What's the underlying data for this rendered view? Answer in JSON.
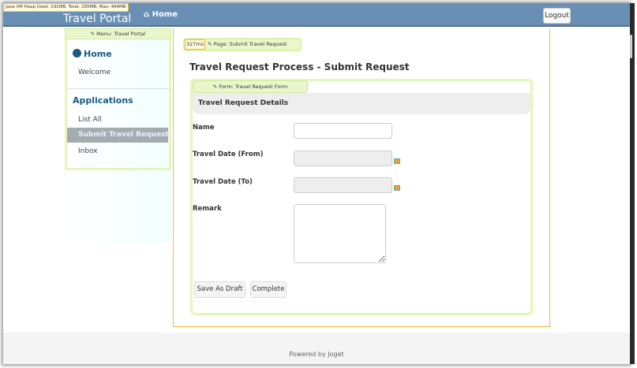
{
  "heap_info": "Java VM Heap Used: 191MB, Total: 295MB, Max: 494MB",
  "header": {
    "brand": "Travel Portal",
    "home": "Home",
    "logout": "Logout"
  },
  "menu": {
    "tag": "Menu: Travel Portal",
    "home": "Home",
    "welcome": "Welcome",
    "applications": "Applications",
    "items": [
      "List All",
      "Submit Travel Request",
      "Inbox"
    ]
  },
  "page": {
    "timing": "327ms",
    "tag": "Page: Submit Travel Request",
    "title": "Travel Request Process - Submit Request"
  },
  "form": {
    "tag": "Form: Travel Request Form",
    "section": "Travel Request Details",
    "fields": {
      "name": {
        "label": "Name",
        "value": ""
      },
      "from": {
        "label": "Travel Date (From)",
        "value": ""
      },
      "to": {
        "label": "Travel Date (To)",
        "value": ""
      },
      "remark": {
        "label": "Remark",
        "value": ""
      }
    },
    "buttons": {
      "draft": "Save As Draft",
      "complete": "Complete"
    }
  },
  "footer": "Powered by Joget",
  "colors": {
    "header": "#6a8fb5",
    "accent": "#1b5b82",
    "highlight": "#e2f8b8",
    "border": "#f6b73c"
  }
}
